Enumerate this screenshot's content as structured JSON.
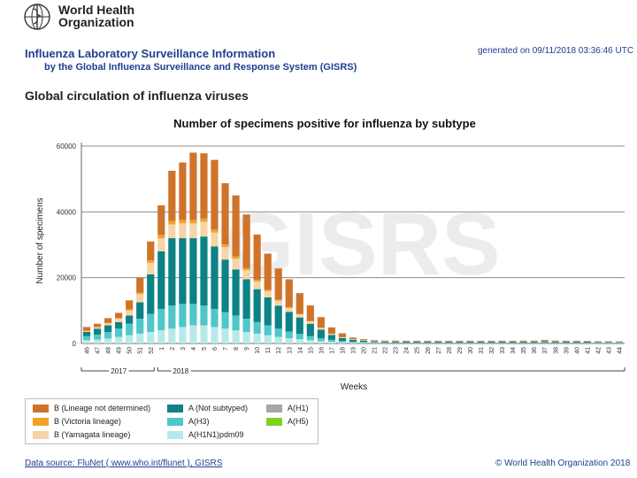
{
  "header": {
    "org_line1": "World Health",
    "org_line2": "Organization",
    "title": "Influenza Laboratory Surveillance Information",
    "subtitle": "by the Global Influenza Surveillance and Response System (GISRS)",
    "generated": "generated on 09/11/2018 03:36:46 UTC",
    "section": "Global circulation of influenza viruses"
  },
  "watermark": "GISRS",
  "footer": {
    "source": "Data source: FluNet ( www.who.int/flunet ), GISRS",
    "copyright": "© World Health Organization 2018"
  },
  "colors": {
    "b_not_det": "#d0732a",
    "b_victoria": "#f0a328",
    "b_yamagata": "#f6d4a6",
    "a_not_subtyped": "#0c8284",
    "a_h3": "#4fc7c8",
    "a_h1n1pdm": "#b7e9e9",
    "a_h1": "#a6a6a6",
    "a_h5": "#7ed321"
  },
  "chart_data": {
    "type": "bar",
    "stacked": true,
    "title": "Number of specimens positive for influenza by subtype",
    "xlabel": "Weeks",
    "ylabel": "Number of specimens",
    "ylim": [
      0,
      60000
    ],
    "yticks": [
      "0",
      "20000",
      "40000",
      "60000"
    ],
    "year_labels": [
      "2017",
      "2018"
    ],
    "categories": [
      "46",
      "47",
      "48",
      "49",
      "50",
      "51",
      "52",
      "1",
      "2",
      "3",
      "4",
      "5",
      "6",
      "7",
      "8",
      "9",
      "10",
      "11",
      "12",
      "13",
      "14",
      "15",
      "16",
      "17",
      "18",
      "19",
      "20",
      "21",
      "22",
      "23",
      "24",
      "25",
      "26",
      "27",
      "28",
      "29",
      "30",
      "31",
      "32",
      "33",
      "34",
      "35",
      "36",
      "37",
      "38",
      "39",
      "40",
      "41",
      "42",
      "43",
      "44"
    ],
    "series": [
      {
        "name": "A(H1N1)pdm09",
        "color": "#b7e9e9",
        "values": [
          1000,
          1200,
          1500,
          2000,
          2500,
          3000,
          3500,
          4000,
          4500,
          5000,
          5500,
          5500,
          5000,
          4500,
          4000,
          3500,
          3000,
          2500,
          2000,
          1600,
          1300,
          1000,
          700,
          500,
          350,
          250,
          200,
          150,
          120,
          110,
          100,
          100,
          100,
          100,
          100,
          100,
          100,
          100,
          100,
          100,
          100,
          100,
          100,
          110,
          100,
          100,
          100,
          100,
          100,
          100,
          100
        ]
      },
      {
        "name": "A(H3)",
        "color": "#4fc7c8",
        "values": [
          1200,
          1500,
          2000,
          2500,
          3500,
          4500,
          5500,
          6500,
          7000,
          7000,
          6500,
          6000,
          5500,
          5000,
          4500,
          4000,
          3500,
          3000,
          2500,
          2000,
          1600,
          1200,
          900,
          600,
          400,
          300,
          250,
          200,
          150,
          150,
          150,
          150,
          160,
          170,
          170,
          170,
          160,
          150,
          150,
          150,
          150,
          160,
          170,
          180,
          170,
          160,
          160,
          150,
          140,
          140,
          150
        ]
      },
      {
        "name": "A (Not subtyped)",
        "color": "#0c8284",
        "values": [
          1300,
          1800,
          2000,
          2000,
          2500,
          5000,
          12000,
          17500,
          20500,
          20000,
          20000,
          21000,
          19000,
          16000,
          14000,
          12000,
          10000,
          8500,
          7000,
          6000,
          5000,
          3800,
          2600,
          1500,
          900,
          600,
          400,
          300,
          300,
          300,
          300,
          300,
          300,
          300,
          300,
          300,
          300,
          300,
          300,
          300,
          300,
          300,
          300,
          350,
          300,
          300,
          300,
          300,
          250,
          250,
          200
        ]
      },
      {
        "name": "B (Yamagata lineage)",
        "color": "#f6d4a6",
        "values": [
          300,
          400,
          600,
          1000,
          1500,
          2500,
          3500,
          4000,
          4200,
          4500,
          4500,
          4500,
          4200,
          3800,
          3300,
          2800,
          2300,
          1900,
          1500,
          1200,
          900,
          700,
          500,
          300,
          200,
          150,
          100,
          100,
          100,
          100,
          80,
          80,
          80,
          80,
          80,
          80,
          80,
          80,
          80,
          80,
          80,
          80,
          80,
          90,
          80,
          80,
          80,
          80,
          70,
          70,
          60
        ]
      },
      {
        "name": "B (Victoria lineage)",
        "color": "#f0a328",
        "values": [
          100,
          100,
          200,
          300,
          400,
          500,
          800,
          1000,
          1000,
          1000,
          1000,
          1000,
          900,
          800,
          700,
          600,
          500,
          400,
          300,
          250,
          200,
          150,
          100,
          80,
          60,
          50,
          40,
          40,
          40,
          40,
          40,
          40,
          40,
          40,
          40,
          40,
          40,
          40,
          40,
          40,
          40,
          40,
          40,
          50,
          40,
          40,
          40,
          40,
          40,
          40,
          40
        ]
      },
      {
        "name": "B (Lineage not determined)",
        "color": "#d0732a",
        "values": [
          1100,
          1000,
          1400,
          1500,
          2700,
          4500,
          5700,
          9000,
          15300,
          17500,
          20500,
          19800,
          21200,
          18600,
          18500,
          16300,
          13800,
          11000,
          9500,
          8450,
          6300,
          4700,
          3200,
          1900,
          1190,
          450,
          310,
          210,
          190,
          200,
          180,
          180,
          170,
          160,
          160,
          160,
          170,
          170,
          180,
          180,
          180,
          200,
          200,
          300,
          210,
          170,
          140,
          120,
          90,
          90,
          90
        ]
      },
      {
        "name": "A(H1)",
        "color": "#a6a6a6",
        "values": [
          0,
          0,
          0,
          0,
          0,
          0,
          0,
          0,
          0,
          0,
          0,
          0,
          0,
          0,
          0,
          0,
          0,
          0,
          0,
          0,
          0,
          0,
          0,
          0,
          0,
          0,
          0,
          0,
          0,
          0,
          0,
          0,
          0,
          0,
          0,
          0,
          0,
          0,
          0,
          0,
          0,
          0,
          0,
          0,
          0,
          0,
          0,
          0,
          0,
          0,
          0
        ]
      },
      {
        "name": "A(H5)",
        "color": "#7ed321",
        "values": [
          0,
          0,
          0,
          0,
          0,
          0,
          0,
          0,
          0,
          0,
          0,
          0,
          0,
          0,
          0,
          0,
          0,
          0,
          0,
          0,
          0,
          0,
          0,
          0,
          0,
          0,
          0,
          0,
          0,
          0,
          0,
          0,
          0,
          0,
          0,
          0,
          0,
          0,
          0,
          0,
          0,
          0,
          0,
          0,
          0,
          0,
          0,
          0,
          0,
          0,
          0
        ]
      }
    ],
    "legend": [
      {
        "label": "B (Lineage not determined)",
        "color": "#d0732a"
      },
      {
        "label": "B (Victoria lineage)",
        "color": "#f0a328"
      },
      {
        "label": "B (Yamagata lineage)",
        "color": "#f6d4a6"
      },
      {
        "label": "A (Not subtyped)",
        "color": "#0c8284"
      },
      {
        "label": "A(H3)",
        "color": "#4fc7c8"
      },
      {
        "label": "A(H1N1)pdm09",
        "color": "#b7e9e9"
      },
      {
        "label": "A(H1)",
        "color": "#a6a6a6"
      },
      {
        "label": "A(H5)",
        "color": "#7ed321"
      }
    ],
    "legend_position": "bottom-left",
    "grid": true
  }
}
